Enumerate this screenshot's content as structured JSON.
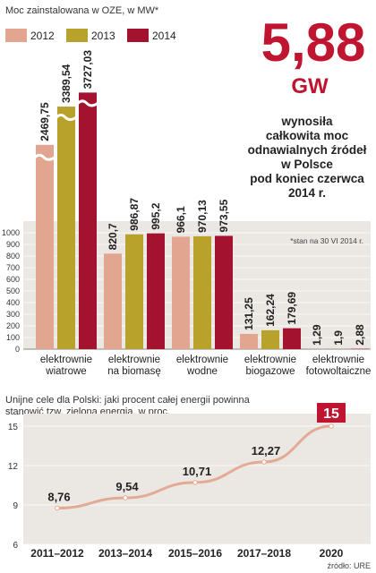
{
  "colors": {
    "c2012": "#e2a58f",
    "c2013": "#b9a22c",
    "c2014": "#a3122e",
    "accent": "#c01530",
    "panel": "#ebe8e4",
    "line": "#e3ab94"
  },
  "header": {
    "subtitle": "Moc zainstalowana w OZE, w MW*",
    "big_number": "5,88",
    "big_unit": "GW",
    "desc_lines": [
      "wynosiła",
      "całkowita moc",
      "odnawialnych źródeł",
      "w Polsce",
      "pod koniec czerwca",
      "2014 r."
    ],
    "footnote": "*stan na 30 VI 2014 r."
  },
  "chart_data": [
    {
      "type": "bar",
      "title": "Moc zainstalowana w OZE, w MW*",
      "categories": [
        [
          "elektrownie",
          "wiatrowe"
        ],
        [
          "elektrownie",
          "na biomasę"
        ],
        [
          "elektrownie",
          "wodne"
        ],
        [
          "elektrownie",
          "biogazowe"
        ],
        [
          "elektrownie",
          "fotowoltaiczne"
        ]
      ],
      "series": [
        {
          "name": "2012",
          "color": "#e2a58f",
          "values": [
            2469.75,
            820.7,
            966.1,
            131.25,
            1.29
          ],
          "labels": [
            "2469,75",
            "820,7",
            "966,1",
            "131,25",
            "1,29"
          ]
        },
        {
          "name": "2013",
          "color": "#b9a22c",
          "values": [
            3389.54,
            986.87,
            970.13,
            162.24,
            1.9
          ],
          "labels": [
            "3389,54",
            "986,87",
            "970,13",
            "162,24",
            "1,9"
          ]
        },
        {
          "name": "2014",
          "color": "#a3122e",
          "values": [
            3727.03,
            995.2,
            973.55,
            179.69,
            2.88
          ],
          "labels": [
            "3727,03",
            "995,2",
            "973,55",
            "179,69",
            "2,88"
          ]
        }
      ],
      "yticks": [
        "0",
        "100",
        "200",
        "300",
        "400",
        "500",
        "600",
        "700",
        "800",
        "900",
        "1000"
      ],
      "ylim": [
        0,
        1000
      ],
      "axis_break": true
    },
    {
      "type": "line",
      "title": "Unijne cele dla Polski: jaki procent całej energii powinna stanowić tzw. zielona energia, w proc.",
      "x": [
        "2011–2012",
        "2013–2014",
        "2015–2016",
        "2017–2018",
        "2020"
      ],
      "y": [
        8.76,
        9.54,
        10.71,
        12.27,
        15
      ],
      "labels": [
        "8,76",
        "9,54",
        "10,71",
        "12,27",
        "15"
      ],
      "yticks": [
        "6",
        "9",
        "12",
        "15"
      ],
      "ylim": [
        6,
        15
      ]
    }
  ],
  "source": "źródło: URE"
}
